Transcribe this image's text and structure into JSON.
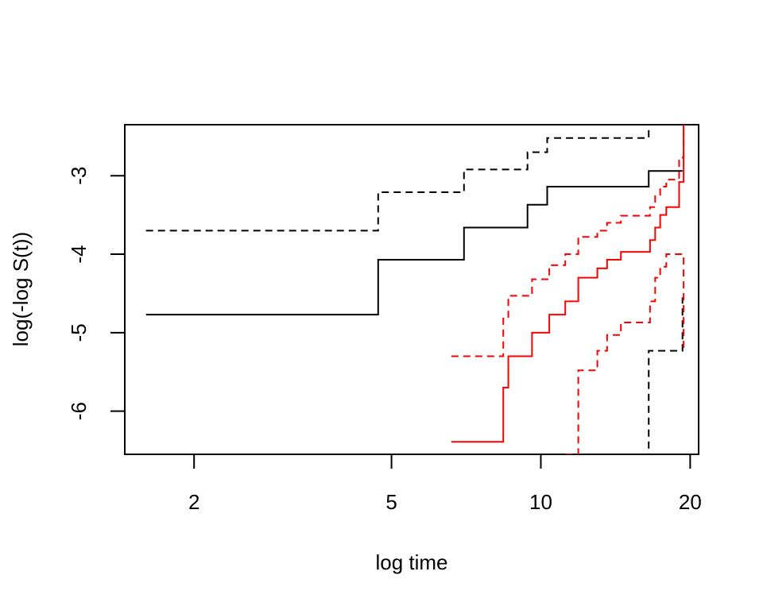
{
  "chart_data": {
    "type": "line",
    "title": "",
    "xlabel": "log time",
    "ylabel": "log(-log S(t))",
    "x_scale": "log",
    "xlim": [
      1.45,
      20.8
    ],
    "ylim": [
      -6.55,
      -2.35
    ],
    "x_ticks": [
      2,
      5,
      10,
      20
    ],
    "x_tick_labels": [
      "2",
      "5",
      "10",
      "20"
    ],
    "y_ticks": [
      -6,
      -5,
      -4,
      -3
    ],
    "y_tick_labels": [
      "-6",
      "-5",
      "-4",
      "-3"
    ],
    "grid": false,
    "legend": "none",
    "series": [
      {
        "color": "#000000",
        "dash": "solid",
        "x": [
          1.6,
          4.7,
          7.0,
          9.4,
          10.3,
          16.5,
          19.3
        ],
        "y": [
          -4.77,
          -4.07,
          -3.66,
          -3.37,
          -3.14,
          -2.94,
          -2.94
        ]
      },
      {
        "color": "#000000",
        "dash": "dashed",
        "x": [
          1.6,
          4.7,
          7.0,
          9.4,
          10.3,
          16.5,
          19.3
        ],
        "y": [
          -3.7,
          -3.21,
          -2.92,
          -2.7,
          -2.52,
          -2.35,
          -2.35
        ]
      },
      {
        "color": "#000000",
        "dash": "dashed",
        "x": [
          10.3,
          16.5,
          19.3
        ],
        "y": [
          -6.55,
          -5.23,
          -4.55
        ]
      },
      {
        "color": "#ff0000",
        "dash": "solid",
        "x": [
          6.6,
          8.4,
          8.6,
          9.6,
          10.4,
          11.2,
          11.9,
          13.0,
          13.6,
          14.5,
          16.6,
          17.0,
          17.4,
          17.9,
          19.0,
          19.4
        ],
        "y": [
          -6.39,
          -5.7,
          -5.3,
          -5.0,
          -4.77,
          -4.6,
          -4.3,
          -4.18,
          -4.07,
          -3.97,
          -3.82,
          -3.66,
          -3.5,
          -3.4,
          -3.08,
          -2.35
        ]
      },
      {
        "color": "#ff0000",
        "dash": "dashed",
        "x": [
          6.6,
          8.4,
          8.6,
          9.6,
          10.4,
          11.2,
          11.9,
          13.0,
          13.6,
          14.5,
          16.6,
          17.0,
          17.4,
          17.9,
          19.0,
          19.4
        ],
        "y": [
          -5.3,
          -4.82,
          -4.53,
          -4.32,
          -4.14,
          -4.0,
          -3.78,
          -3.7,
          -3.6,
          -3.51,
          -3.4,
          -3.26,
          -3.14,
          -3.05,
          -2.77,
          -2.35
        ]
      },
      {
        "color": "#ff0000",
        "dash": "dashed",
        "x": [
          11.2,
          11.9,
          13.0,
          13.6,
          14.5,
          16.6,
          17.0,
          17.4,
          17.9,
          19.0,
          19.4
        ],
        "y": [
          -6.55,
          -5.48,
          -5.23,
          -5.03,
          -4.87,
          -4.6,
          -4.3,
          -4.16,
          -4.0,
          -4.0,
          -5.22
        ]
      }
    ]
  }
}
